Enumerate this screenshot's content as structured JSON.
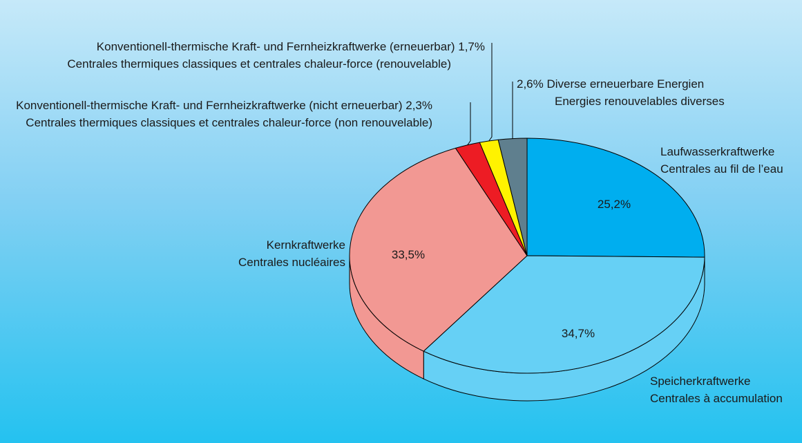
{
  "chart_data": {
    "type": "pie",
    "slices": [
      {
        "key": "laufwasser",
        "value": 25.2,
        "value_label": "25,2%",
        "color": "#00aeef",
        "label_de": "Laufwasserkraftwerke",
        "label_fr": "Centrales au fil de l’eau"
      },
      {
        "key": "speicher",
        "value": 34.7,
        "value_label": "34,7%",
        "color": "#66d0f5",
        "label_de": "Speicherkraftwerke",
        "label_fr": "Centrales à accumulation"
      },
      {
        "key": "kern",
        "value": 33.5,
        "value_label": "33,5%",
        "color": "#f29893",
        "label_de": "Kernkraftwerke",
        "label_fr": "Centrales nucléaires"
      },
      {
        "key": "therm_nicht",
        "value": 2.3,
        "value_label": "2,3%",
        "color": "#ed1c24",
        "label_de": "Konventionell-thermische Kraft- und Fernheizkraftwerke (nicht erneuerbar)",
        "label_fr": "Centrales thermiques classiques et centrales chaleur-force (non renouvelable)"
      },
      {
        "key": "therm_erneuerbar",
        "value": 1.7,
        "value_label": "1,7%",
        "color": "#fff200",
        "label_de": "Konventionell-thermische Kraft- und Fernheizkraftwerke (erneuerbar)",
        "label_fr": "Centrales thermiques classiques et centrales chaleur-force (renouvelable)"
      },
      {
        "key": "diverse",
        "value": 2.6,
        "value_label": "2,6%",
        "color": "#5f7f8e",
        "label_de": "Diverse erneuerbare Energien",
        "label_fr": "Energies renouvelables diverses"
      }
    ]
  }
}
